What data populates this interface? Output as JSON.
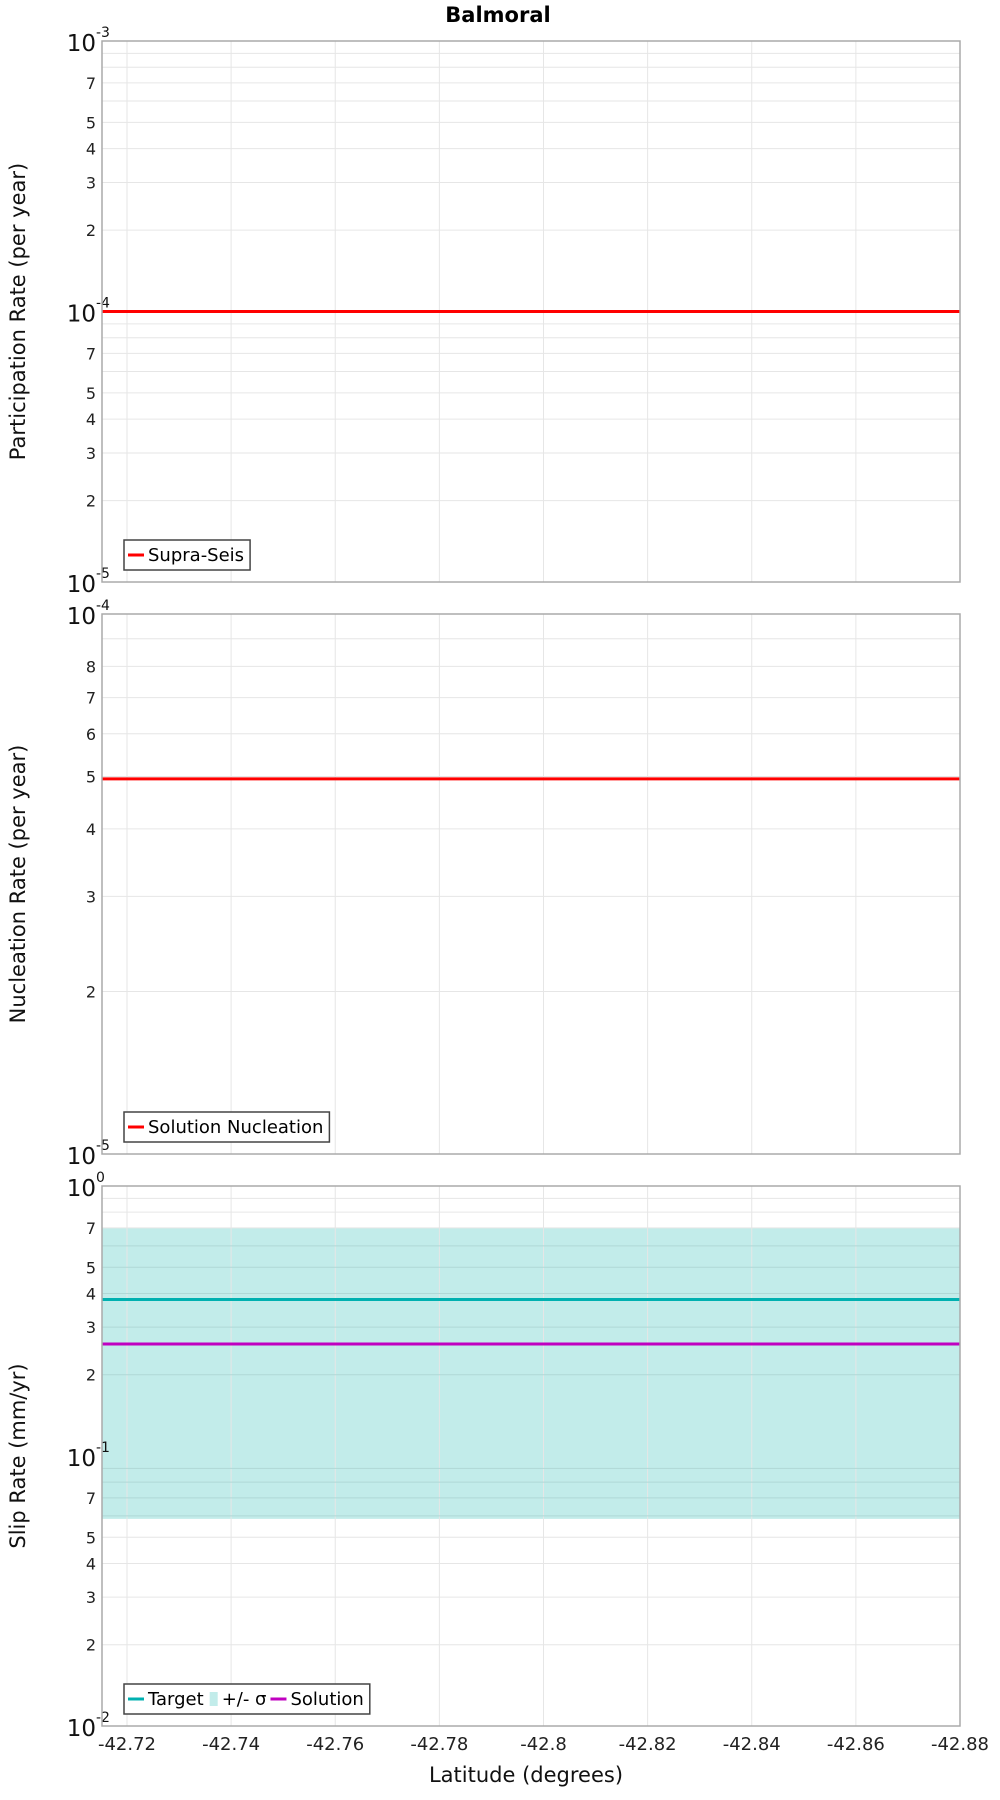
{
  "chart_data": [
    {
      "type": "line",
      "title": "Balmoral",
      "ylabel": "Participation Rate (per year)",
      "xlabel": "",
      "yscale": "log",
      "ylim": [
        1e-05,
        0.001
      ],
      "xlim": [
        -42.7152,
        -42.88
      ],
      "series": [
        {
          "name": "Supra-Seis",
          "color": "#ff0000",
          "x": [
            -42.7152,
            -42.88
          ],
          "values": [
            0.0001,
            0.0001
          ]
        }
      ],
      "legend": "bottom-left"
    },
    {
      "type": "line",
      "ylabel": "Nucleation Rate (per year)",
      "xlabel": "",
      "yscale": "log",
      "ylim": [
        1e-05,
        0.0001
      ],
      "xlim": [
        -42.7152,
        -42.88
      ],
      "series": [
        {
          "name": "Solution Nucleation",
          "color": "#ff0000",
          "x": [
            -42.7152,
            -42.88
          ],
          "values": [
            4.95e-05,
            4.95e-05
          ]
        }
      ],
      "legend": "bottom-left"
    },
    {
      "type": "line",
      "ylabel": "Slip Rate (mm/yr)",
      "xlabel": "Latitude (degrees)",
      "yscale": "log",
      "ylim": [
        0.01,
        1
      ],
      "xlim": [
        -42.7152,
        -42.88
      ],
      "xticks": [
        "-42.72",
        "-42.74",
        "-42.76",
        "-42.78",
        "-42.8",
        "-42.82",
        "-42.84",
        "-42.86",
        "-42.88"
      ],
      "band": {
        "name": "+/- σ",
        "color": "#c2ecea",
        "lower": 0.0585,
        "upper": 0.7
      },
      "series": [
        {
          "name": "Target",
          "color": "#00b0b0",
          "x": [
            -42.7152,
            -42.88
          ],
          "values": [
            0.38,
            0.38
          ]
        },
        {
          "name": "Solution",
          "color": "#c000c0",
          "x": [
            -42.7152,
            -42.88
          ],
          "values": [
            0.26,
            0.26
          ]
        }
      ],
      "legend": "bottom-left"
    }
  ]
}
